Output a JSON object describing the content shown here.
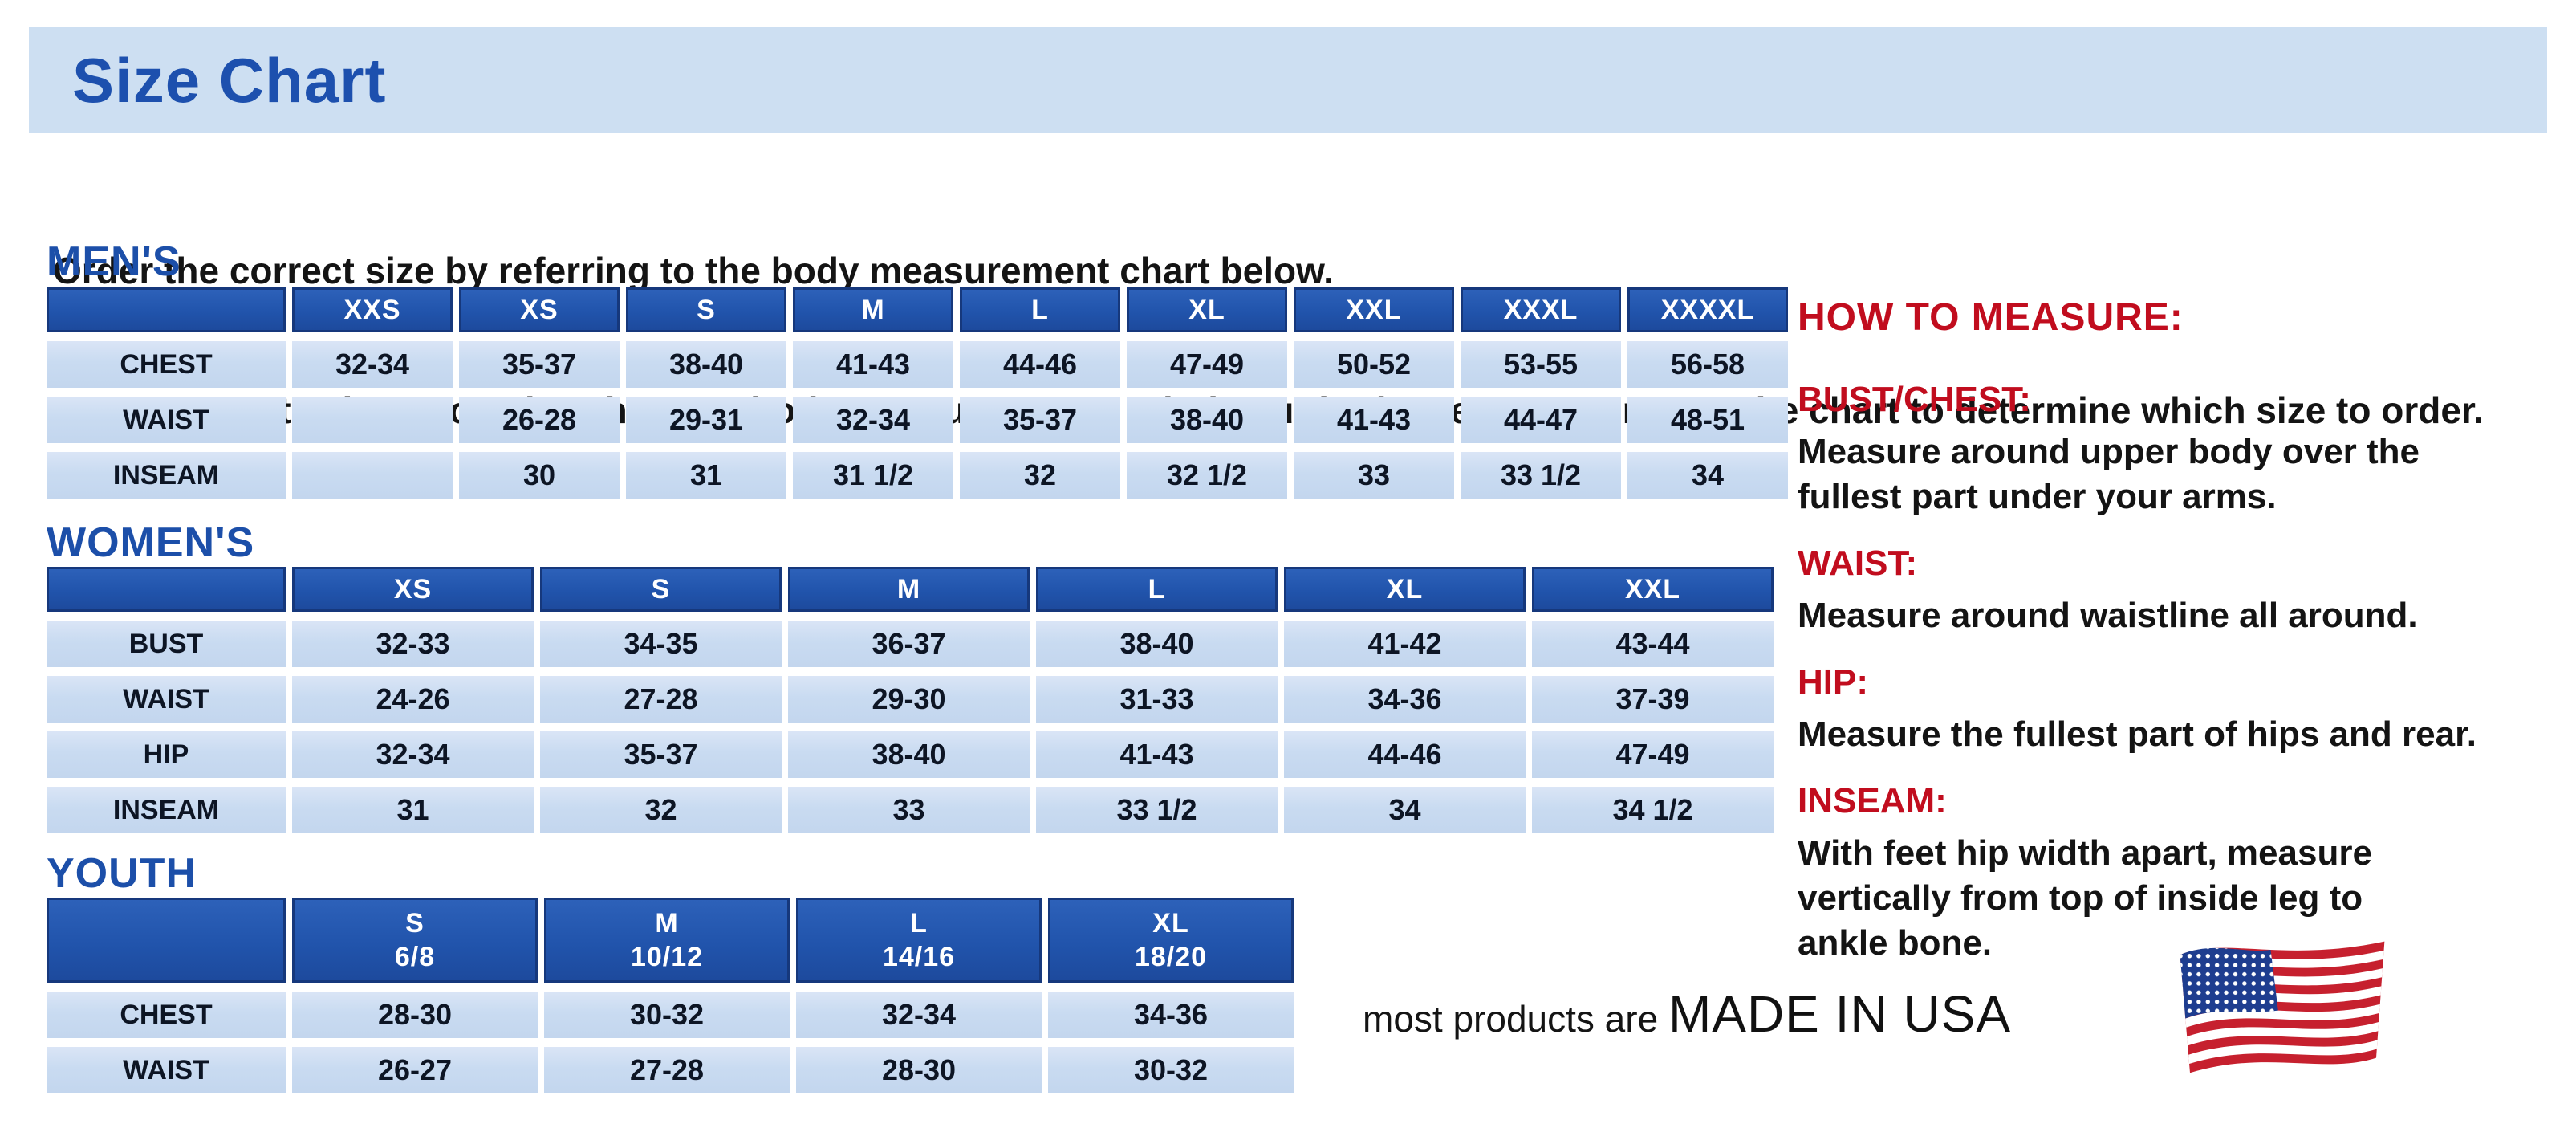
{
  "banner": {
    "title": "Size Chart"
  },
  "intro": {
    "line1": "Order the correct size by referring to the body measurement chart below.",
    "line2": "Measurements shown on size chart are body measurements.  Find your body measurements on the chart to determine which size to order."
  },
  "tables": {
    "mens": {
      "section_label": "MEN'S",
      "columns": [
        "",
        "XXS",
        "XS",
        "S",
        "M",
        "L",
        "XL",
        "XXL",
        "XXXL",
        "XXXXL"
      ],
      "rows": [
        {
          "label": "CHEST",
          "values": [
            "32-34",
            "35-37",
            "38-40",
            "41-43",
            "44-46",
            "47-49",
            "50-52",
            "53-55",
            "56-58"
          ]
        },
        {
          "label": "WAIST",
          "values": [
            "",
            "26-28",
            "29-31",
            "32-34",
            "35-37",
            "38-40",
            "41-43",
            "44-47",
            "48-51"
          ]
        },
        {
          "label": "INSEAM",
          "values": [
            "",
            "30",
            "31",
            "31 1/2",
            "32",
            "32 1/2",
            "33",
            "33 1/2",
            "34"
          ]
        }
      ]
    },
    "womens": {
      "section_label": "WOMEN'S",
      "columns": [
        "",
        "XS",
        "S",
        "M",
        "L",
        "XL",
        "XXL"
      ],
      "rows": [
        {
          "label": "BUST",
          "values": [
            "32-33",
            "34-35",
            "36-37",
            "38-40",
            "41-42",
            "43-44"
          ]
        },
        {
          "label": "WAIST",
          "values": [
            "24-26",
            "27-28",
            "29-30",
            "31-33",
            "34-36",
            "37-39"
          ]
        },
        {
          "label": "HIP",
          "values": [
            "32-34",
            "35-37",
            "38-40",
            "41-43",
            "44-46",
            "47-49"
          ]
        },
        {
          "label": "INSEAM",
          "values": [
            "31",
            "32",
            "33",
            "33 1/2",
            "34",
            "34 1/2"
          ]
        }
      ]
    },
    "youth": {
      "section_label": "YOUTH",
      "columns": [
        "",
        "S\n6/8",
        "M\n10/12",
        "L\n14/16",
        "XL\n18/20"
      ],
      "rows": [
        {
          "label": "CHEST",
          "values": [
            "28-30",
            "30-32",
            "32-34",
            "34-36"
          ]
        },
        {
          "label": "WAIST",
          "values": [
            "26-27",
            "27-28",
            "28-30",
            "30-32"
          ]
        }
      ]
    }
  },
  "how_to_measure": {
    "title": "HOW TO MEASURE:",
    "items": [
      {
        "label": "BUST/CHEST:",
        "text": "Measure around upper body over the\nfullest part under your arms."
      },
      {
        "label": "WAIST:",
        "text": "Measure around waistline all around."
      },
      {
        "label": "HIP:",
        "text": "Measure the fullest part of hips and rear."
      },
      {
        "label": "INSEAM:",
        "text": "With feet hip width apart, measure\nvertically from top of inside leg to\nankle bone."
      }
    ]
  },
  "footer": {
    "prefix": "most products are ",
    "emphasis": "MADE IN USA",
    "flag_icon": "us-flag-icon"
  },
  "colors": {
    "banner_bg": "#cddff2",
    "title_blue": "#1d50ae",
    "section_blue": "#1c4fa9",
    "table_header_blue": "#2154ac",
    "table_header_border": "#16387c",
    "table_cell_blue": "#c9dbf1",
    "heading_red": "#c10d1e",
    "flag_red": "#c6202e",
    "flag_navy": "#1e3d8f"
  }
}
